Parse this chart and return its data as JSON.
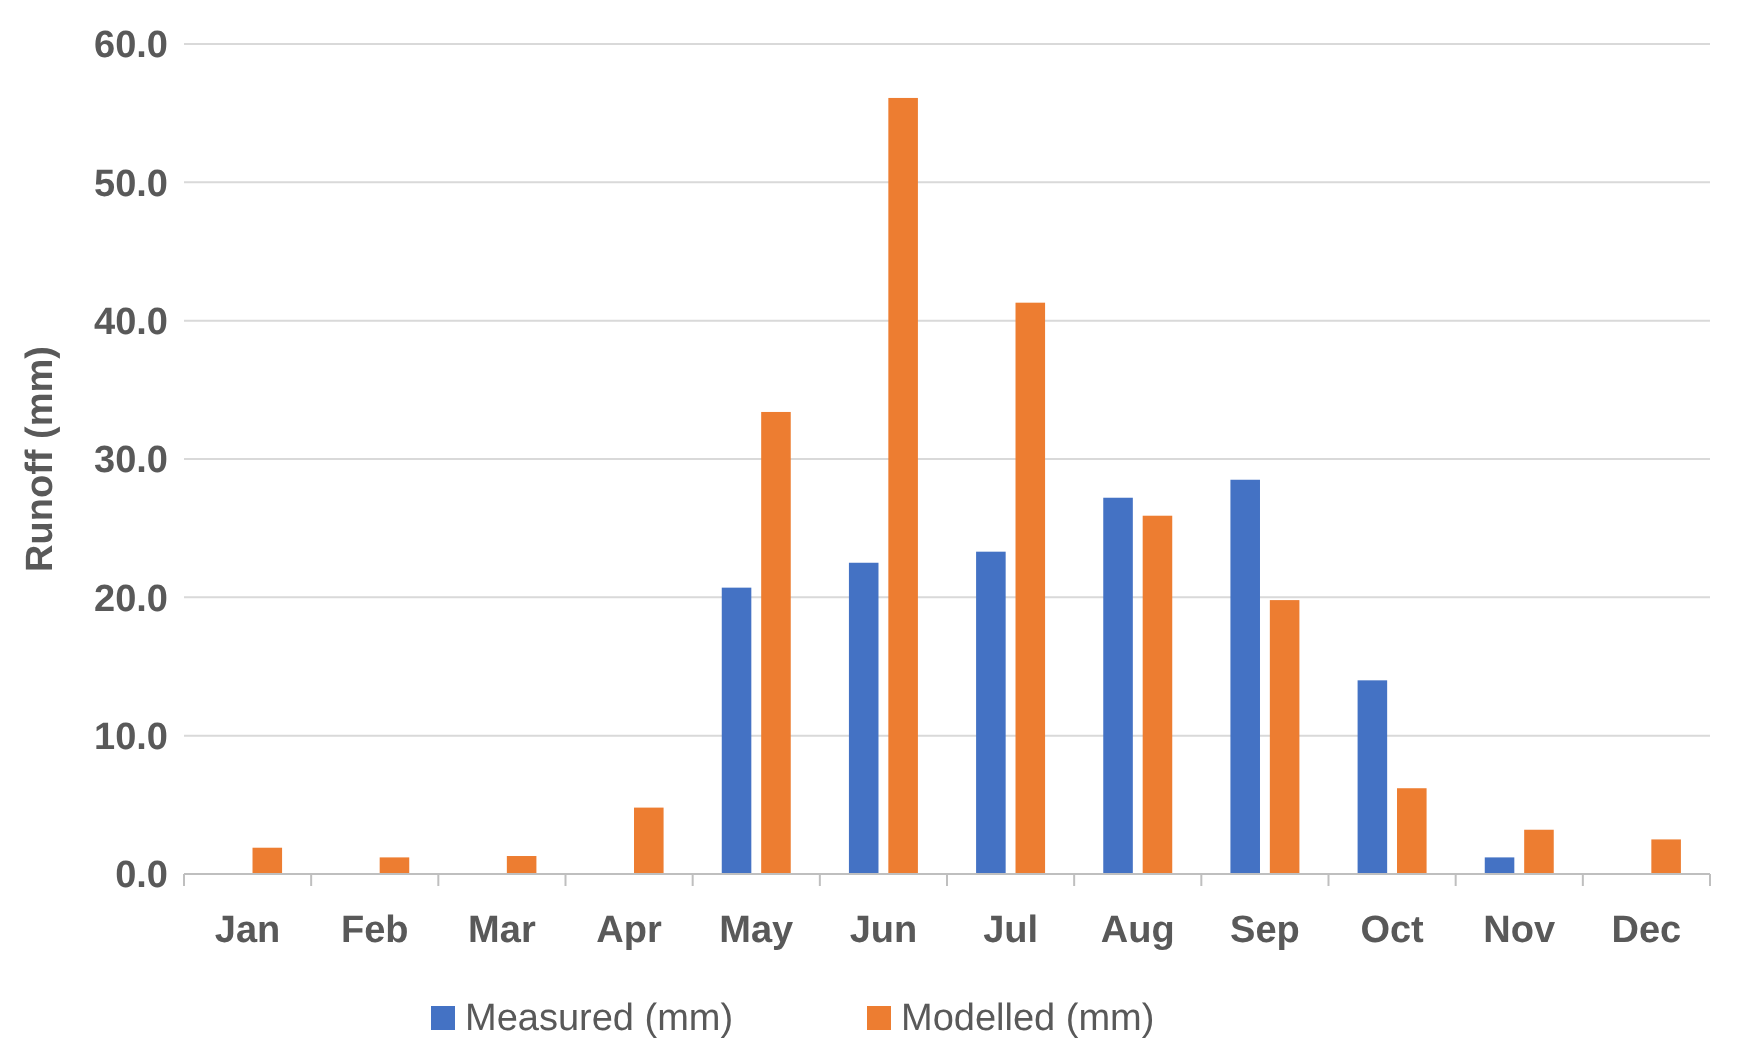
{
  "chart_data": {
    "type": "bar",
    "ylabel": "Runoff (mm)",
    "categories": [
      "Jan",
      "Feb",
      "Mar",
      "Apr",
      "May",
      "Jun",
      "Jul",
      "Aug",
      "Sep",
      "Oct",
      "Nov",
      "Dec"
    ],
    "series": [
      {
        "name": "Measured (mm)",
        "color": "#4472c4",
        "values": [
          0,
          0,
          0,
          0,
          20.7,
          22.5,
          23.3,
          27.2,
          28.5,
          14.0,
          1.2,
          0
        ]
      },
      {
        "name": "Modelled (mm)",
        "color": "#ed7d31",
        "values": [
          1.9,
          1.2,
          1.3,
          4.8,
          33.4,
          56.1,
          41.3,
          25.9,
          19.8,
          6.2,
          3.2,
          2.5
        ]
      }
    ],
    "ylim": [
      0,
      60
    ],
    "yticks": [
      {
        "value": 0,
        "label": "0.0"
      },
      {
        "value": 10,
        "label": "10.0"
      },
      {
        "value": 20,
        "label": "20.0"
      },
      {
        "value": 30,
        "label": "30.0"
      },
      {
        "value": 40,
        "label": "40.0"
      },
      {
        "value": 50,
        "label": "50.0"
      },
      {
        "value": 60,
        "label": "60.0"
      }
    ],
    "grid": "y",
    "legend": "bottom"
  }
}
